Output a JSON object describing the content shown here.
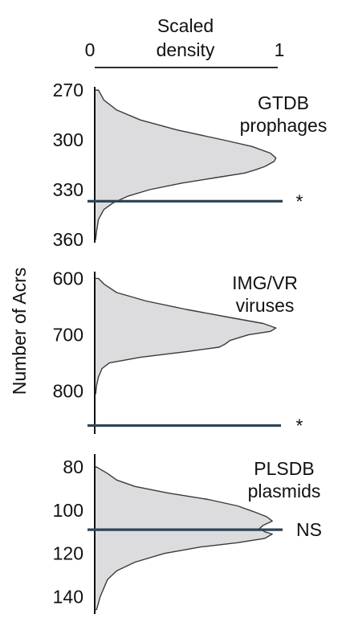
{
  "colors": {
    "fill": "#dcdcde",
    "outline": "#3a3a3a",
    "observed_line": "#2f4556",
    "axis": "#111111",
    "text": "#111111"
  },
  "chart_data": {
    "type": "area",
    "orientation": "horizontal-density (ridgeline panels)",
    "top_axis": {
      "title": "Scaled\ndensity",
      "ticks": [
        {
          "value": 0,
          "label": "0"
        },
        {
          "value": 1,
          "label": "1"
        }
      ],
      "range": [
        0,
        1
      ]
    },
    "ylabel": "Number of Acrs",
    "grid": false,
    "panels": [
      {
        "title": "GTDB\nprophages",
        "y_range": [
          268,
          362
        ],
        "ticks": [
          270,
          300,
          330,
          360
        ],
        "observed": 337,
        "significance": "*",
        "density": [
          [
            270,
            0.02
          ],
          [
            276,
            0.05
          ],
          [
            282,
            0.12
          ],
          [
            288,
            0.25
          ],
          [
            294,
            0.45
          ],
          [
            300,
            0.7
          ],
          [
            304,
            0.86
          ],
          [
            308,
            0.96
          ],
          [
            311,
            0.99
          ],
          [
            313,
            0.98
          ],
          [
            316,
            0.93
          ],
          [
            318,
            0.88
          ],
          [
            320,
            0.82
          ],
          [
            323,
            0.65
          ],
          [
            326,
            0.48
          ],
          [
            330,
            0.3
          ],
          [
            334,
            0.18
          ],
          [
            338,
            0.1
          ],
          [
            342,
            0.05
          ],
          [
            348,
            0.02
          ],
          [
            355,
            0.01
          ],
          [
            360,
            0.005
          ]
        ]
      },
      {
        "title": "IMG/VR\nviruses",
        "y_range": [
          588,
          876
        ],
        "ticks": [
          600,
          700,
          800
        ],
        "observed": 861,
        "significance": "*",
        "density": [
          [
            600,
            0.02
          ],
          [
            610,
            0.05
          ],
          [
            625,
            0.12
          ],
          [
            640,
            0.28
          ],
          [
            655,
            0.5
          ],
          [
            670,
            0.75
          ],
          [
            680,
            0.92
          ],
          [
            688,
            0.99
          ],
          [
            694,
            0.96
          ],
          [
            700,
            0.84
          ],
          [
            710,
            0.74
          ],
          [
            717,
            0.71
          ],
          [
            722,
            0.68
          ],
          [
            730,
            0.5
          ],
          [
            740,
            0.25
          ],
          [
            750,
            0.08
          ],
          [
            760,
            0.04
          ],
          [
            775,
            0.02
          ],
          [
            790,
            0.01
          ],
          [
            805,
            0.005
          ]
        ]
      },
      {
        "title": "PLSDB\nplasmids",
        "y_range": [
          74,
          148
        ],
        "ticks": [
          80,
          100,
          120,
          140
        ],
        "observed": 109,
        "significance": "NS",
        "density": [
          [
            80,
            0.01
          ],
          [
            81,
            0.03
          ],
          [
            83,
            0.07
          ],
          [
            86,
            0.12
          ],
          [
            89,
            0.22
          ],
          [
            92,
            0.4
          ],
          [
            95,
            0.62
          ],
          [
            98,
            0.78
          ],
          [
            101,
            0.88
          ],
          [
            103,
            0.94
          ],
          [
            105,
            0.97
          ],
          [
            107,
            0.92
          ],
          [
            108.5,
            0.9
          ],
          [
            110,
            0.93
          ],
          [
            111,
            0.97
          ],
          [
            113,
            0.93
          ],
          [
            115,
            0.78
          ],
          [
            117,
            0.58
          ],
          [
            120,
            0.38
          ],
          [
            124,
            0.22
          ],
          [
            128,
            0.12
          ],
          [
            132,
            0.07
          ],
          [
            136,
            0.05
          ],
          [
            140,
            0.03
          ],
          [
            143,
            0.02
          ],
          [
            146,
            0.01
          ]
        ]
      }
    ]
  }
}
